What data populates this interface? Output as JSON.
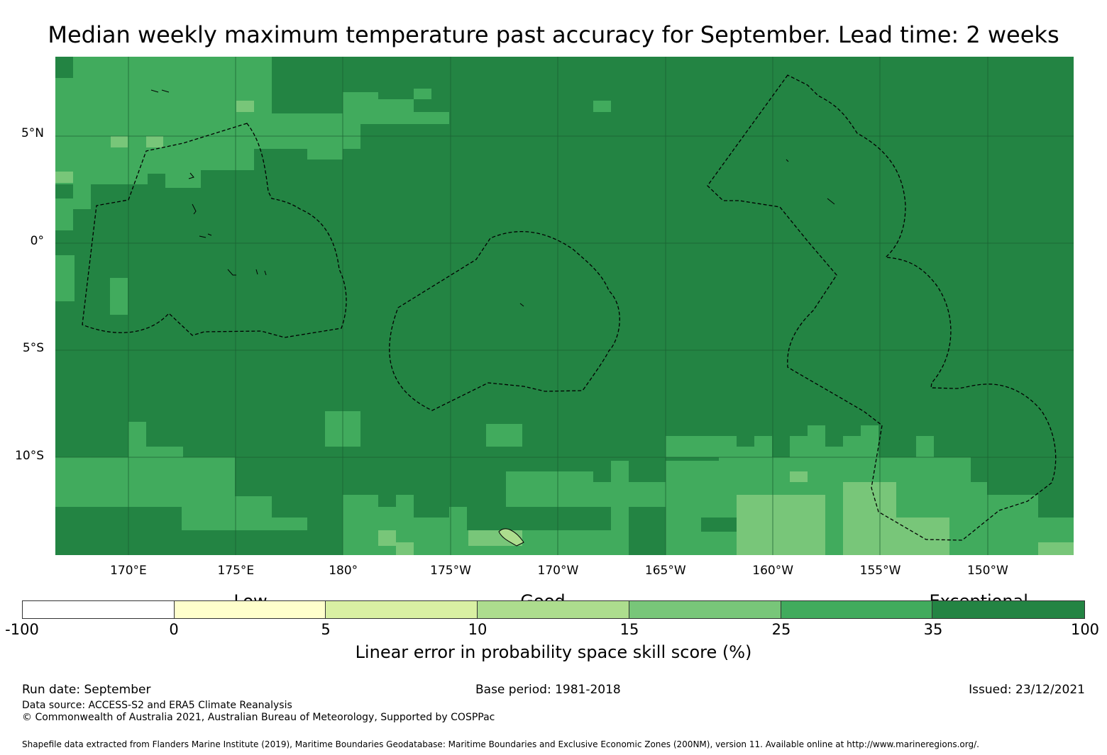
{
  "title": "Median weekly maximum temperature past accuracy for September. Lead time: 2 weeks",
  "map": {
    "lat_labels": [
      {
        "text": "5°N",
        "lat": 5
      },
      {
        "text": "0°",
        "lat": 0
      },
      {
        "text": "5°S",
        "lat": -5
      },
      {
        "text": "10°S",
        "lat": -10
      }
    ],
    "lon_labels": [
      {
        "text": "170°E",
        "lon": 170
      },
      {
        "text": "175°E",
        "lon": 175
      },
      {
        "text": "180°",
        "lon": 180
      },
      {
        "text": "175°W",
        "lon": 185
      },
      {
        "text": "170°W",
        "lon": 190
      },
      {
        "text": "165°W",
        "lon": 195
      },
      {
        "text": "160°W",
        "lon": 200
      },
      {
        "text": "155°W",
        "lon": 205
      },
      {
        "text": "150°W",
        "lon": 210
      }
    ],
    "extent": {
      "lon_min": 166.6,
      "lon_max": 214.0,
      "lat_min": -14.6,
      "lat_max": 8.6
    },
    "base_color": "#238443"
  },
  "legend": {
    "bands": [
      {
        "text": "Low",
        "pos": 0.215
      },
      {
        "text": "Good",
        "pos": 0.49
      },
      {
        "text": "Exceptional",
        "pos": 0.9
      }
    ],
    "bins": [
      {
        "color": "#ffffff"
      },
      {
        "color": "#ffffcc"
      },
      {
        "color": "#d9f0a3"
      },
      {
        "color": "#addd8e"
      },
      {
        "color": "#78c679"
      },
      {
        "color": "#41ab5d"
      },
      {
        "color": "#238443"
      }
    ],
    "ticks": [
      "-100",
      "0",
      "5",
      "10",
      "15",
      "25",
      "35",
      "100"
    ],
    "label": "Linear error in probability space skill score (%)"
  },
  "footer": {
    "run_date": "Run date: September",
    "base_period": "Base period: 1981-2018",
    "issued": "Issued: 23/12/2021",
    "data_source": "Data source: ACCESS-S2 and ERA5 Climate Reanalysis",
    "copyright": "© Commonwealth of Australia 2021, Australian Bureau of Meteorology, Supported by COSPPac",
    "shapefile": "Shapefile data extracted from Flanders Marine Institute (2019), Maritime Boundaries Geodatabase: Maritime Boundaries and Exclusive Economic Zones (200NM), version 11. Available online at http://www.marineregions.org/."
  }
}
